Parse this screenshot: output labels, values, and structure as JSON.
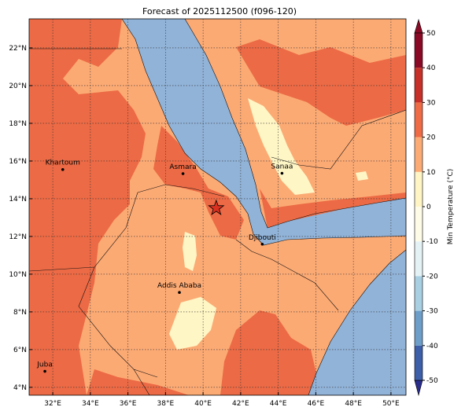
{
  "chart_data": {
    "type": "map",
    "title": "Forecast of 2025112500 (f096-120)",
    "xlim": [
      30.74,
      50.8
    ],
    "ylim": [
      3.58,
      23.54
    ],
    "xticks": [
      {
        "value": 32,
        "label": "32°E"
      },
      {
        "value": 34,
        "label": "34°E"
      },
      {
        "value": 36,
        "label": "36°E"
      },
      {
        "value": 38,
        "label": "38°E"
      },
      {
        "value": 40,
        "label": "40°E"
      },
      {
        "value": 42,
        "label": "42°E"
      },
      {
        "value": 44,
        "label": "44°E"
      },
      {
        "value": 46,
        "label": "46°E"
      },
      {
        "value": 48,
        "label": "48°E"
      },
      {
        "value": 50,
        "label": "50°E"
      }
    ],
    "yticks": [
      {
        "value": 4,
        "label": "4°N"
      },
      {
        "value": 6,
        "label": "6°N"
      },
      {
        "value": 8,
        "label": "8°N"
      },
      {
        "value": 10,
        "label": "10°N"
      },
      {
        "value": 12,
        "label": "12°N"
      },
      {
        "value": 14,
        "label": "14°N"
      },
      {
        "value": 16,
        "label": "16°N"
      },
      {
        "value": 18,
        "label": "18°N"
      },
      {
        "value": 20,
        "label": "20°N"
      },
      {
        "value": 22,
        "label": "22°N"
      }
    ],
    "grid": true,
    "cities": [
      {
        "name": "Khartoum",
        "lon": 32.53,
        "lat": 15.55
      },
      {
        "name": "Asmara",
        "lon": 38.93,
        "lat": 15.33
      },
      {
        "name": "Sanaa",
        "lon": 44.2,
        "lat": 15.35
      },
      {
        "name": "Djibouti",
        "lon": 43.15,
        "lat": 11.59
      },
      {
        "name": "Addis Ababa",
        "lon": 38.74,
        "lat": 9.03
      },
      {
        "name": "Juba",
        "lon": 31.58,
        "lat": 4.85
      }
    ],
    "marker": {
      "lon": 40.7,
      "lat": 13.5,
      "color": "#d93020"
    },
    "colorbar": {
      "label": "Min Temperature (°C)",
      "clim": [
        -50,
        50
      ],
      "ticks": [
        -50,
        -40,
        -30,
        -20,
        -10,
        0,
        10,
        20,
        30,
        40,
        50
      ],
      "colors": [
        "#2a2d8c",
        "#3d5ea8",
        "#6d9dc9",
        "#a9cfe3",
        "#e4f2f6",
        "#fefbe6",
        "#fff5c4",
        "#fdab74",
        "#ee6b45",
        "#c73028",
        "#8a0a25"
      ]
    }
  }
}
